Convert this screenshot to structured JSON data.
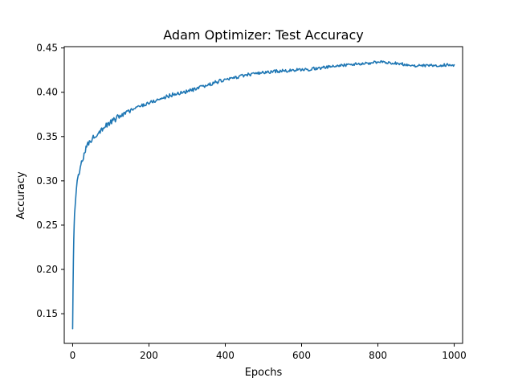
{
  "chart_data": {
    "type": "line",
    "title": "Adam Optimizer: Test Accuracy",
    "xlabel": "Epochs",
    "ylabel": "Accuracy",
    "xlim": [
      -22,
      1022
    ],
    "ylim": [
      0.1165,
      0.4515
    ],
    "xticks": [
      0,
      200,
      400,
      600,
      800,
      1000
    ],
    "yticks": [
      0.15,
      0.2,
      0.25,
      0.3,
      0.35,
      0.4,
      0.45
    ],
    "grid": false,
    "line_color": "#1f77b4",
    "series": [
      {
        "x": [
          0,
          1,
          2,
          3,
          4,
          5,
          6,
          8,
          10,
          12,
          15,
          18,
          20,
          25,
          30,
          35,
          40,
          50,
          60,
          70,
          80,
          90,
          100,
          120,
          140,
          160,
          180,
          200,
          220,
          240,
          260,
          280,
          300,
          320,
          340,
          360,
          380,
          400,
          420,
          440,
          460,
          480,
          500,
          520,
          540,
          560,
          580,
          600,
          620,
          640,
          660,
          680,
          700,
          720,
          740,
          760,
          780,
          800,
          820,
          840,
          860,
          880,
          900,
          920,
          940,
          960,
          980,
          1000
        ],
        "y": [
          0.131,
          0.18,
          0.21,
          0.235,
          0.25,
          0.262,
          0.27,
          0.28,
          0.29,
          0.298,
          0.305,
          0.31,
          0.315,
          0.322,
          0.33,
          0.336,
          0.341,
          0.347,
          0.352,
          0.356,
          0.36,
          0.363,
          0.366,
          0.372,
          0.377,
          0.381,
          0.385,
          0.388,
          0.391,
          0.394,
          0.397,
          0.399,
          0.401,
          0.403,
          0.406,
          0.409,
          0.412,
          0.414,
          0.416,
          0.418,
          0.42,
          0.421,
          0.422,
          0.423,
          0.424,
          0.424,
          0.425,
          0.425,
          0.426,
          0.427,
          0.428,
          0.429,
          0.43,
          0.431,
          0.432,
          0.432,
          0.433,
          0.434,
          0.434,
          0.433,
          0.432,
          0.431,
          0.43,
          0.43,
          0.43,
          0.43,
          0.431,
          0.431
        ]
      }
    ]
  }
}
